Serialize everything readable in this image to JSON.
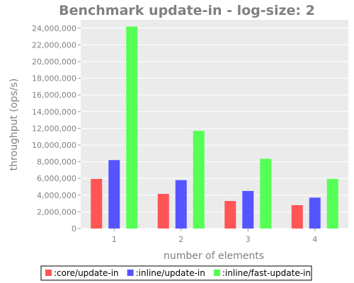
{
  "chart_data": {
    "type": "bar",
    "title": "Benchmark update-in - log-size: 2",
    "xlabel": "number of elements",
    "ylabel": "throughput (ops/s)",
    "categories": [
      "1",
      "2",
      "3",
      "4"
    ],
    "ylim": [
      0,
      25000000
    ],
    "yticks": [
      {
        "value": 0,
        "label": "0"
      },
      {
        "value": 2000000,
        "label": "2,000,000"
      },
      {
        "value": 4000000,
        "label": "4,000,000"
      },
      {
        "value": 6000000,
        "label": "6,000,000"
      },
      {
        "value": 8000000,
        "label": "8,000,000"
      },
      {
        "value": 10000000,
        "label": "10,000,000"
      },
      {
        "value": 12000000,
        "label": "12,000,000"
      },
      {
        "value": 14000000,
        "label": "14,000,000"
      },
      {
        "value": 16000000,
        "label": "16,000,000"
      },
      {
        "value": 18000000,
        "label": "18,000,000"
      },
      {
        "value": 20000000,
        "label": "20,000,000"
      },
      {
        "value": 22000000,
        "label": "22,000,000"
      },
      {
        "value": 24000000,
        "label": "24,000,000"
      }
    ],
    "grid": true,
    "legend": "bottom",
    "series": [
      {
        "name": ":core/update-in",
        "color": "#ff5555",
        "values": [
          5950000,
          4150000,
          3300000,
          2800000
        ]
      },
      {
        "name": ":inline/update-in",
        "color": "#5555ff",
        "values": [
          8200000,
          5800000,
          4500000,
          3700000
        ]
      },
      {
        "name": ":inline/fast-update-in",
        "color": "#55ff55",
        "values": [
          24200000,
          11700000,
          8350000,
          5950000
        ]
      }
    ]
  }
}
